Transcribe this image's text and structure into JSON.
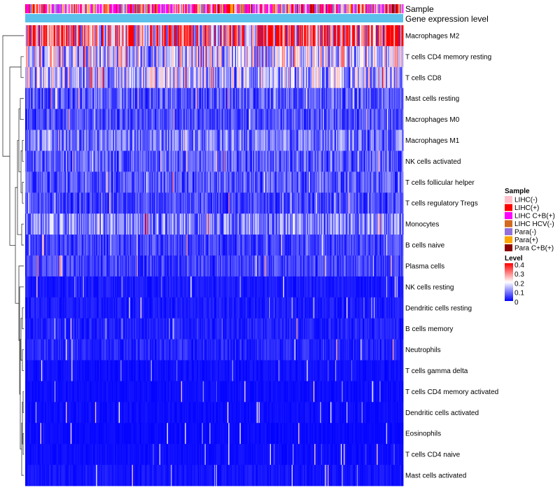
{
  "chart_data": {
    "type": "heatmap",
    "title": "",
    "annotation_tracks": [
      "Sample",
      "Gene expression level"
    ],
    "rows": [
      {
        "label": "Macrophages M2",
        "mean": 0.29
      },
      {
        "label": "T cells CD4 memory resting",
        "mean": 0.17
      },
      {
        "label": "T cells CD8",
        "mean": 0.15
      },
      {
        "label": "Mast cells resting",
        "mean": 0.07
      },
      {
        "label": "Macrophages M0",
        "mean": 0.06
      },
      {
        "label": "Macrophages M1",
        "mean": 0.09
      },
      {
        "label": "NK cells activated",
        "mean": 0.07
      },
      {
        "label": "T cells follicular helper",
        "mean": 0.065
      },
      {
        "label": "T cells regulatory  Tregs",
        "mean": 0.055
      },
      {
        "label": "Monocytes",
        "mean": 0.1
      },
      {
        "label": "B cells naive",
        "mean": 0.05
      },
      {
        "label": "Plasma cells",
        "mean": 0.05
      },
      {
        "label": "NK cells resting",
        "mean": 0.02
      },
      {
        "label": "Dendritic cells resting",
        "mean": 0.02
      },
      {
        "label": "B cells memory",
        "mean": 0.025
      },
      {
        "label": "Neutrophils",
        "mean": 0.03
      },
      {
        "label": "T cells gamma delta",
        "mean": 0.012
      },
      {
        "label": "T cells CD4 memory activated",
        "mean": 0.01
      },
      {
        "label": "Dendritic cells activated",
        "mean": 0.01
      },
      {
        "label": "Eosinophils",
        "mean": 0.008
      },
      {
        "label": "T cells CD4 naive",
        "mean": 0.01
      },
      {
        "label": "Mast cells activated",
        "mean": 0.015
      }
    ],
    "column_count": 400,
    "color_scale": {
      "title": "Level",
      "stops": [
        {
          "value": 0,
          "color": "#0000ff"
        },
        {
          "value": 0.2,
          "color": "#ffffff"
        },
        {
          "value": 0.4,
          "color": "#ff0000"
        }
      ],
      "ticks": [
        "0.4",
        "0.3",
        "0.2",
        "0.1",
        "0"
      ]
    },
    "sample_legend": {
      "title": "Sample",
      "entries": [
        {
          "label": "LIHC(-)",
          "color": "#ffc0cb"
        },
        {
          "label": "LIHC(+)",
          "color": "#ff0000"
        },
        {
          "label": "LIHC C+B(+)",
          "color": "#ff00ff"
        },
        {
          "label": "LIHC HCV(-)",
          "color": "#d2691e"
        },
        {
          "label": "Para(-)",
          "color": "#9370db"
        },
        {
          "label": "Para(+)",
          "color": "#ffa500"
        },
        {
          "label": "Para C+B(+)",
          "color": "#8b0000"
        }
      ],
      "proportions": [
        0.25,
        0.2,
        0.25,
        0.05,
        0.15,
        0.05,
        0.05
      ]
    },
    "gene_expression_color": "#5bc0eb"
  }
}
